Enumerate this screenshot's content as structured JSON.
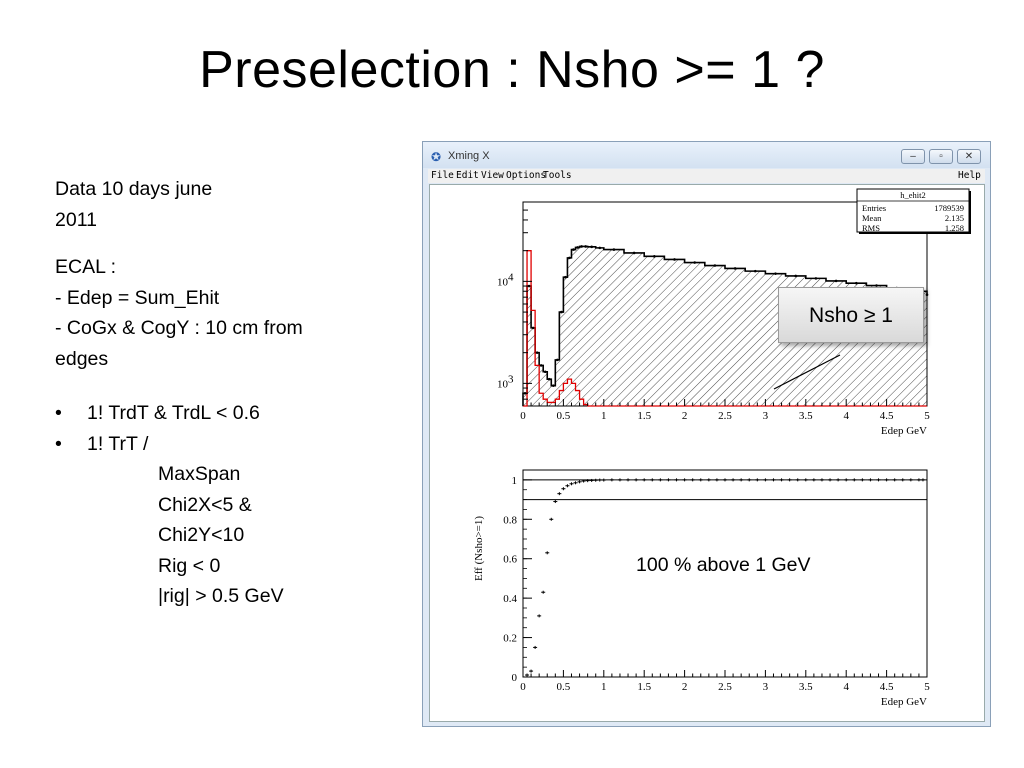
{
  "slide": {
    "title": "Preselection : Nsho >= 1 ?",
    "data_line1": "Data  10 days june",
    "data_line2": "2011",
    "ecal_header": "ECAL :",
    "ecal_line1": "- Edep = Sum_Ehit",
    "ecal_line2": "- CoGx & CogY : 10 cm from",
    "ecal_line3": "edges",
    "bullet1": "1! TrdT  & TrdL < 0.6",
    "bullet2": "1! TrT /",
    "bullet2_sub": [
      "MaxSpan",
      "Chi2X<5 &",
      "Chi2Y<10",
      "Rig < 0",
      "|rig| > 0.5 GeV"
    ],
    "bullet_char": "•",
    "callout": "Nsho ≥ 1",
    "efficiency_note": "100 % above 1 GeV"
  },
  "window": {
    "title": "Xming X",
    "menu": [
      "File",
      "Edit",
      "View",
      "Options",
      "Tools"
    ],
    "help": "Help",
    "buttons": [
      "–",
      "▫",
      "✕"
    ]
  },
  "chart_data": [
    {
      "type": "line",
      "subtype": "histogram",
      "xlabel": "Edep GeV",
      "ylabel": "",
      "xlim": [
        0,
        5
      ],
      "ylog": true,
      "ylim": [
        600,
        60000
      ],
      "x_ticks": [
        "0",
        "0.5",
        "1",
        "1.5",
        "2",
        "2.5",
        "3",
        "3.5",
        "4",
        "4.5",
        "5"
      ],
      "y_ticks": [
        {
          "base": "10",
          "exp": "3",
          "value": 1000
        },
        {
          "base": "10",
          "exp": "4",
          "value": 10000
        }
      ],
      "stats": {
        "name": "h_ehit2",
        "rows": [
          {
            "label": "Entries",
            "value": "1789539"
          },
          {
            "label": "Mean",
            "value": "2.135"
          },
          {
            "label": "RMS",
            "value": "1.258"
          }
        ]
      },
      "series": [
        {
          "color": "#000000",
          "hatched": true,
          "x": [
            0.0,
            0.05,
            0.1,
            0.15,
            0.2,
            0.25,
            0.3,
            0.35,
            0.4,
            0.45,
            0.5,
            0.55,
            0.6,
            0.65,
            0.7,
            0.75,
            0.8,
            0.9,
            1.0,
            1.25,
            1.5,
            1.75,
            2.0,
            2.25,
            2.5,
            2.75,
            3.0,
            3.25,
            3.5,
            3.75,
            4.0,
            4.25,
            4.5,
            4.75,
            5.0
          ],
          "y": [
            800,
            9000,
            3500,
            2000,
            1500,
            1300,
            1100,
            950,
            1700,
            5000,
            11000,
            17000,
            20500,
            21500,
            22000,
            22000,
            21800,
            21300,
            20500,
            19000,
            17600,
            16400,
            15300,
            14300,
            13400,
            12600,
            11900,
            11300,
            10700,
            10100,
            9600,
            9100,
            8600,
            8000,
            7400
          ]
        },
        {
          "color": "#e00000",
          "hatched": false,
          "x": [
            0.0,
            0.05,
            0.1,
            0.15,
            0.2,
            0.25,
            0.3,
            0.35,
            0.4,
            0.45,
            0.5,
            0.55,
            0.6,
            0.65,
            0.7,
            0.75,
            0.8,
            1.0,
            1.5,
            2.0,
            3.0,
            4.0,
            5.0
          ],
          "y": [
            600,
            20000,
            5200,
            1500,
            800,
            700,
            650,
            650,
            700,
            850,
            1000,
            1100,
            1000,
            850,
            700,
            620,
            600,
            600,
            600,
            600,
            600,
            600,
            600
          ]
        }
      ]
    },
    {
      "type": "scatter",
      "xlabel": "Edep GeV",
      "ylabel": "Eff (Nsho>=1)",
      "xlim": [
        0,
        5
      ],
      "ylim": [
        0,
        1.05
      ],
      "x_ticks": [
        "0",
        "0.5",
        "1",
        "1.5",
        "2",
        "2.5",
        "3",
        "3.5",
        "4",
        "4.5",
        "5"
      ],
      "y_ticks": [
        "0",
        "0.2",
        "0.4",
        "0.6",
        "0.8",
        "1"
      ],
      "reference_lines": [
        1.0,
        0.9
      ],
      "series": [
        {
          "color": "#000000",
          "x": [
            0.05,
            0.1,
            0.15,
            0.2,
            0.25,
            0.3,
            0.35,
            0.4,
            0.45,
            0.5,
            0.55,
            0.6,
            0.65,
            0.7,
            0.75,
            0.8,
            0.85,
            0.9,
            0.95,
            1.0,
            1.1,
            1.2,
            1.3,
            1.4,
            1.5,
            1.6,
            1.7,
            1.8,
            1.9,
            2.0,
            2.1,
            2.2,
            2.3,
            2.4,
            2.5,
            2.6,
            2.7,
            2.8,
            2.9,
            3.0,
            3.1,
            3.2,
            3.3,
            3.4,
            3.5,
            3.6,
            3.7,
            3.8,
            3.9,
            4.0,
            4.1,
            4.2,
            4.3,
            4.4,
            4.5,
            4.6,
            4.7,
            4.8,
            4.9,
            4.95
          ],
          "y": [
            0.01,
            0.03,
            0.15,
            0.31,
            0.43,
            0.63,
            0.8,
            0.89,
            0.93,
            0.955,
            0.97,
            0.98,
            0.985,
            0.99,
            0.994,
            0.996,
            0.997,
            0.998,
            0.999,
            0.999,
            1,
            1,
            1,
            1,
            1,
            1,
            1,
            1,
            1,
            1,
            1,
            1,
            1,
            1,
            1,
            1,
            1,
            1,
            1,
            1,
            1,
            1,
            1,
            1,
            1,
            1,
            1,
            1,
            1,
            1,
            1,
            1,
            1,
            1,
            1,
            1,
            1,
            1,
            1,
            1
          ]
        }
      ]
    }
  ]
}
